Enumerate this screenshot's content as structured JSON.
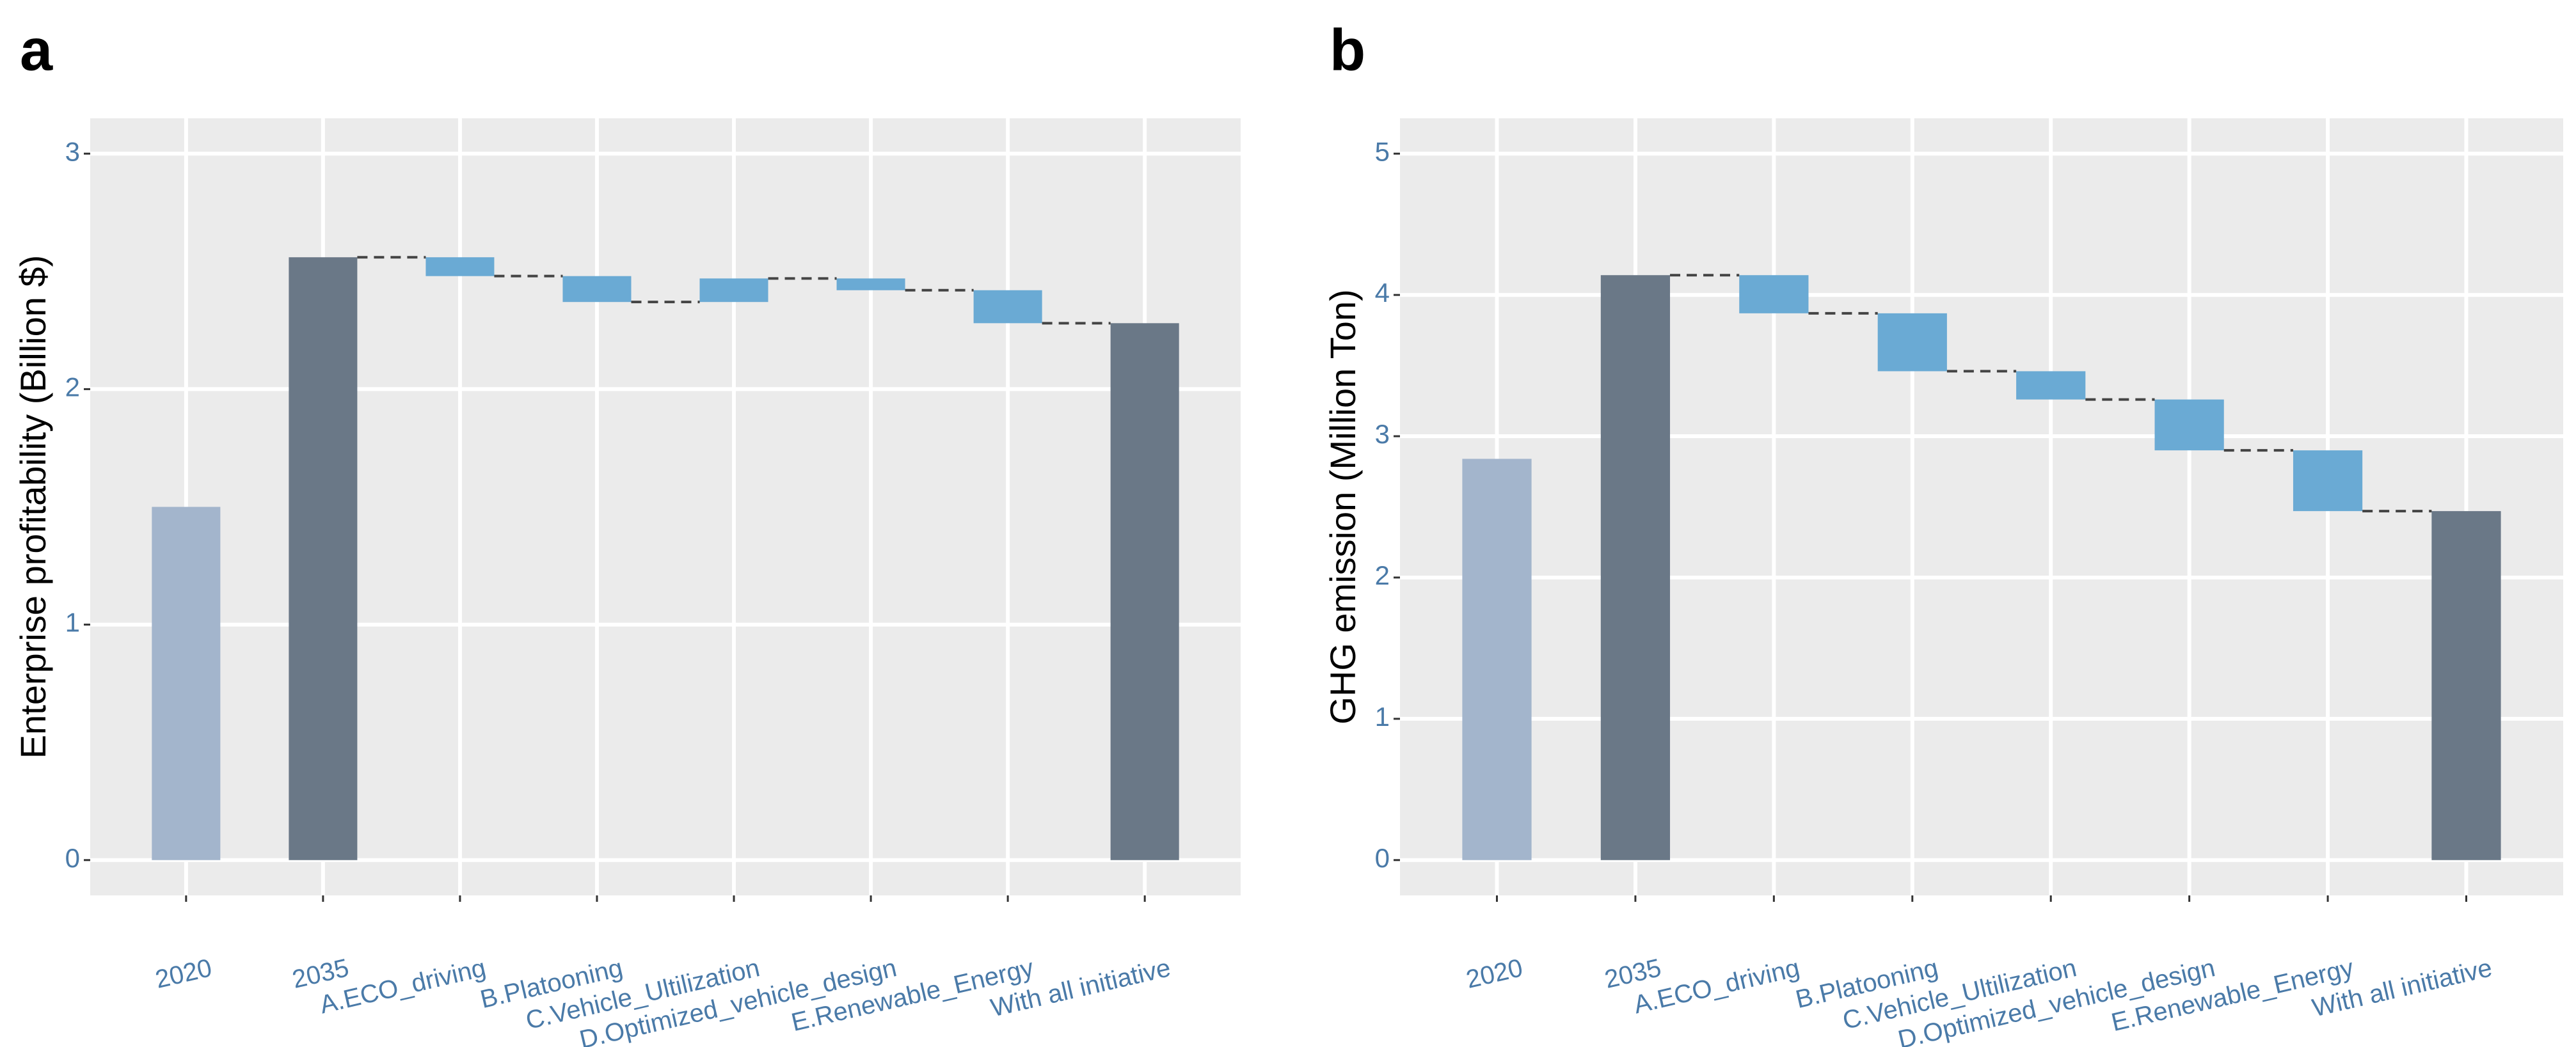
{
  "chart_data": [
    {
      "type": "waterfall",
      "panel_label": "a",
      "y_label": "Enterprise profitability (Billion $)",
      "categories": [
        "2020",
        "2035",
        "A.ECO_driving",
        "B.Platooning",
        "C.Vehicle_Ultilization",
        "D.Optimized_vehicle_design",
        "E.Renewable_Energy",
        "With all initiative"
      ],
      "values": [
        1.5,
        2.56,
        -0.08,
        -0.11,
        0.1,
        -0.05,
        -0.14,
        2.28
      ],
      "measure": [
        "absolute",
        "absolute",
        "relative",
        "relative",
        "relative",
        "relative",
        "relative",
        "absolute"
      ],
      "colors": [
        "#a3b5cc",
        "#6a7887",
        "#6aaad4",
        "#6aaad4",
        "#6aaad4",
        "#6aaad4",
        "#6aaad4",
        "#6a7887"
      ],
      "ylim": [
        -0.15,
        3.15
      ],
      "yticks": [
        0,
        1,
        2,
        3
      ],
      "grid": true
    },
    {
      "type": "waterfall",
      "panel_label": "b",
      "y_label": "GHG emission (Million Ton)",
      "categories": [
        "2020",
        "2035",
        "A.ECO_driving",
        "B.Platooning",
        "C.Vehicle_Ultilization",
        "D.Optimized_vehicle_design",
        "E.Renewable_Energy",
        "With all initiative"
      ],
      "values": [
        2.84,
        4.14,
        -0.27,
        -0.41,
        -0.2,
        -0.36,
        -0.43,
        2.47
      ],
      "measure": [
        "absolute",
        "absolute",
        "relative",
        "relative",
        "relative",
        "relative",
        "relative",
        "absolute"
      ],
      "colors": [
        "#a3b5cc",
        "#6a7887",
        "#6aaad4",
        "#6aaad4",
        "#6aaad4",
        "#6aaad4",
        "#6aaad4",
        "#6a7887"
      ],
      "ylim": [
        -0.25,
        5.25
      ],
      "yticks": [
        0,
        1,
        2,
        3,
        4,
        5
      ],
      "grid": true
    }
  ]
}
